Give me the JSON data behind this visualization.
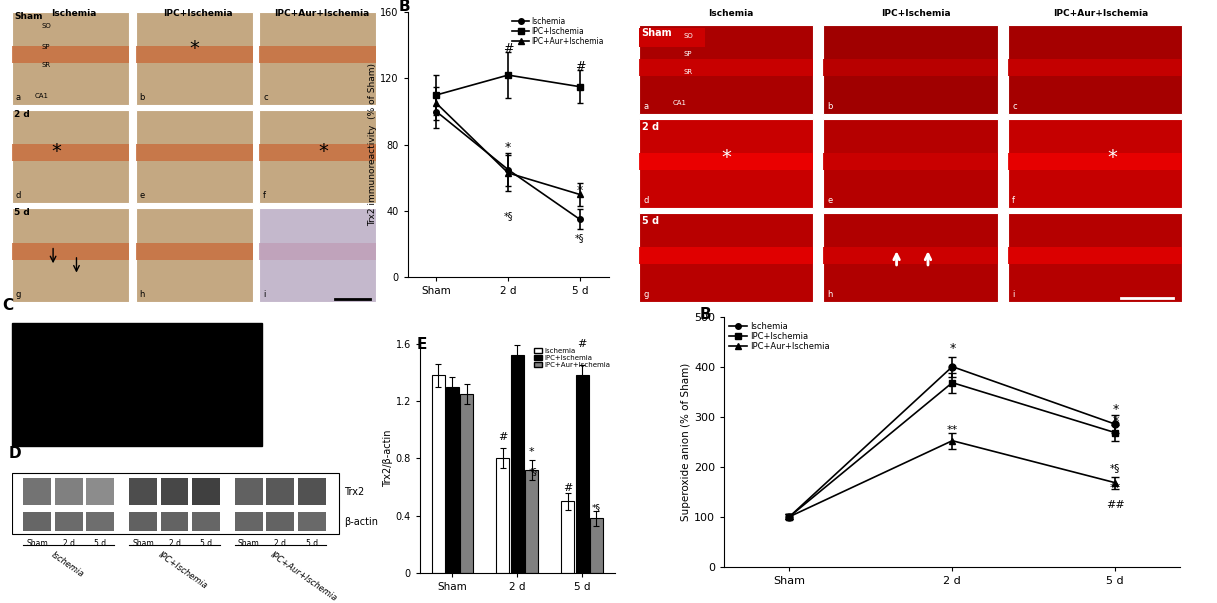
{
  "graph_B_left": {
    "xlabel_ticks": [
      "Sham",
      "2 d",
      "5 d"
    ],
    "ylabel": "Trx2 immunoreactivity  (% of Sham)",
    "ylim": [
      0,
      160
    ],
    "yticks": [
      0,
      40,
      80,
      120,
      160
    ],
    "ischemia": [
      100,
      65,
      35
    ],
    "ischemia_err": [
      10,
      10,
      6
    ],
    "ipc_ischemia": [
      110,
      122,
      115
    ],
    "ipc_ischemia_err": [
      12,
      14,
      10
    ],
    "ipc_aur_ischemia": [
      105,
      63,
      50
    ],
    "ipc_aur_ischemia_err": [
      10,
      11,
      7
    ],
    "legend": [
      "Ischemia",
      "IPC+Ischemia",
      "IPC+Aur+Ischemia"
    ]
  },
  "graph_E_left": {
    "xlabel_ticks": [
      "Sham",
      "2 d",
      "5 d"
    ],
    "ylabel": "Trx2/β-actin",
    "ylim": [
      0,
      1.6
    ],
    "yticks": [
      0,
      0.4,
      0.8,
      1.2,
      1.6
    ],
    "bar_width": 0.22,
    "ischemia": [
      1.38,
      0.8,
      0.5
    ],
    "ischemia_err": [
      0.08,
      0.07,
      0.06
    ],
    "ipc_ischemia": [
      1.3,
      1.52,
      1.38
    ],
    "ipc_ischemia_err": [
      0.07,
      0.07,
      0.07
    ],
    "ipc_aur_ischemia": [
      1.25,
      0.72,
      0.38
    ],
    "ipc_aur_ischemia_err": [
      0.07,
      0.07,
      0.05
    ],
    "legend": [
      "Ischemia",
      "IPC+Ischemia",
      "IPC+Aur+Ischemia"
    ],
    "bar_colors": [
      "white",
      "black",
      "#808080"
    ]
  },
  "graph_B_right": {
    "xlabel_ticks": [
      "Sham",
      "2 d",
      "5 d"
    ],
    "ylabel": "Superoxide anion (% of Sham)",
    "ylim": [
      0,
      500
    ],
    "yticks": [
      0,
      100,
      200,
      300,
      400,
      500
    ],
    "ischemia": [
      100,
      400,
      285
    ],
    "ischemia_err": [
      5,
      20,
      18
    ],
    "ipc_ischemia": [
      100,
      368,
      268
    ],
    "ipc_ischemia_err": [
      5,
      20,
      16
    ],
    "ipc_aur_ischemia": [
      100,
      252,
      168
    ],
    "ipc_aur_ischemia_err": [
      5,
      16,
      12
    ],
    "legend": [
      "Ischemia",
      "IPC+Ischemia",
      "IPC+Aur+Ischemia"
    ]
  },
  "left_A_bg": "#c4a882",
  "left_A_stripe": "#c87040",
  "right_A_bg": "#cc0000",
  "right_A_stripe": "#ff2200",
  "right_A_dark": "#990000"
}
